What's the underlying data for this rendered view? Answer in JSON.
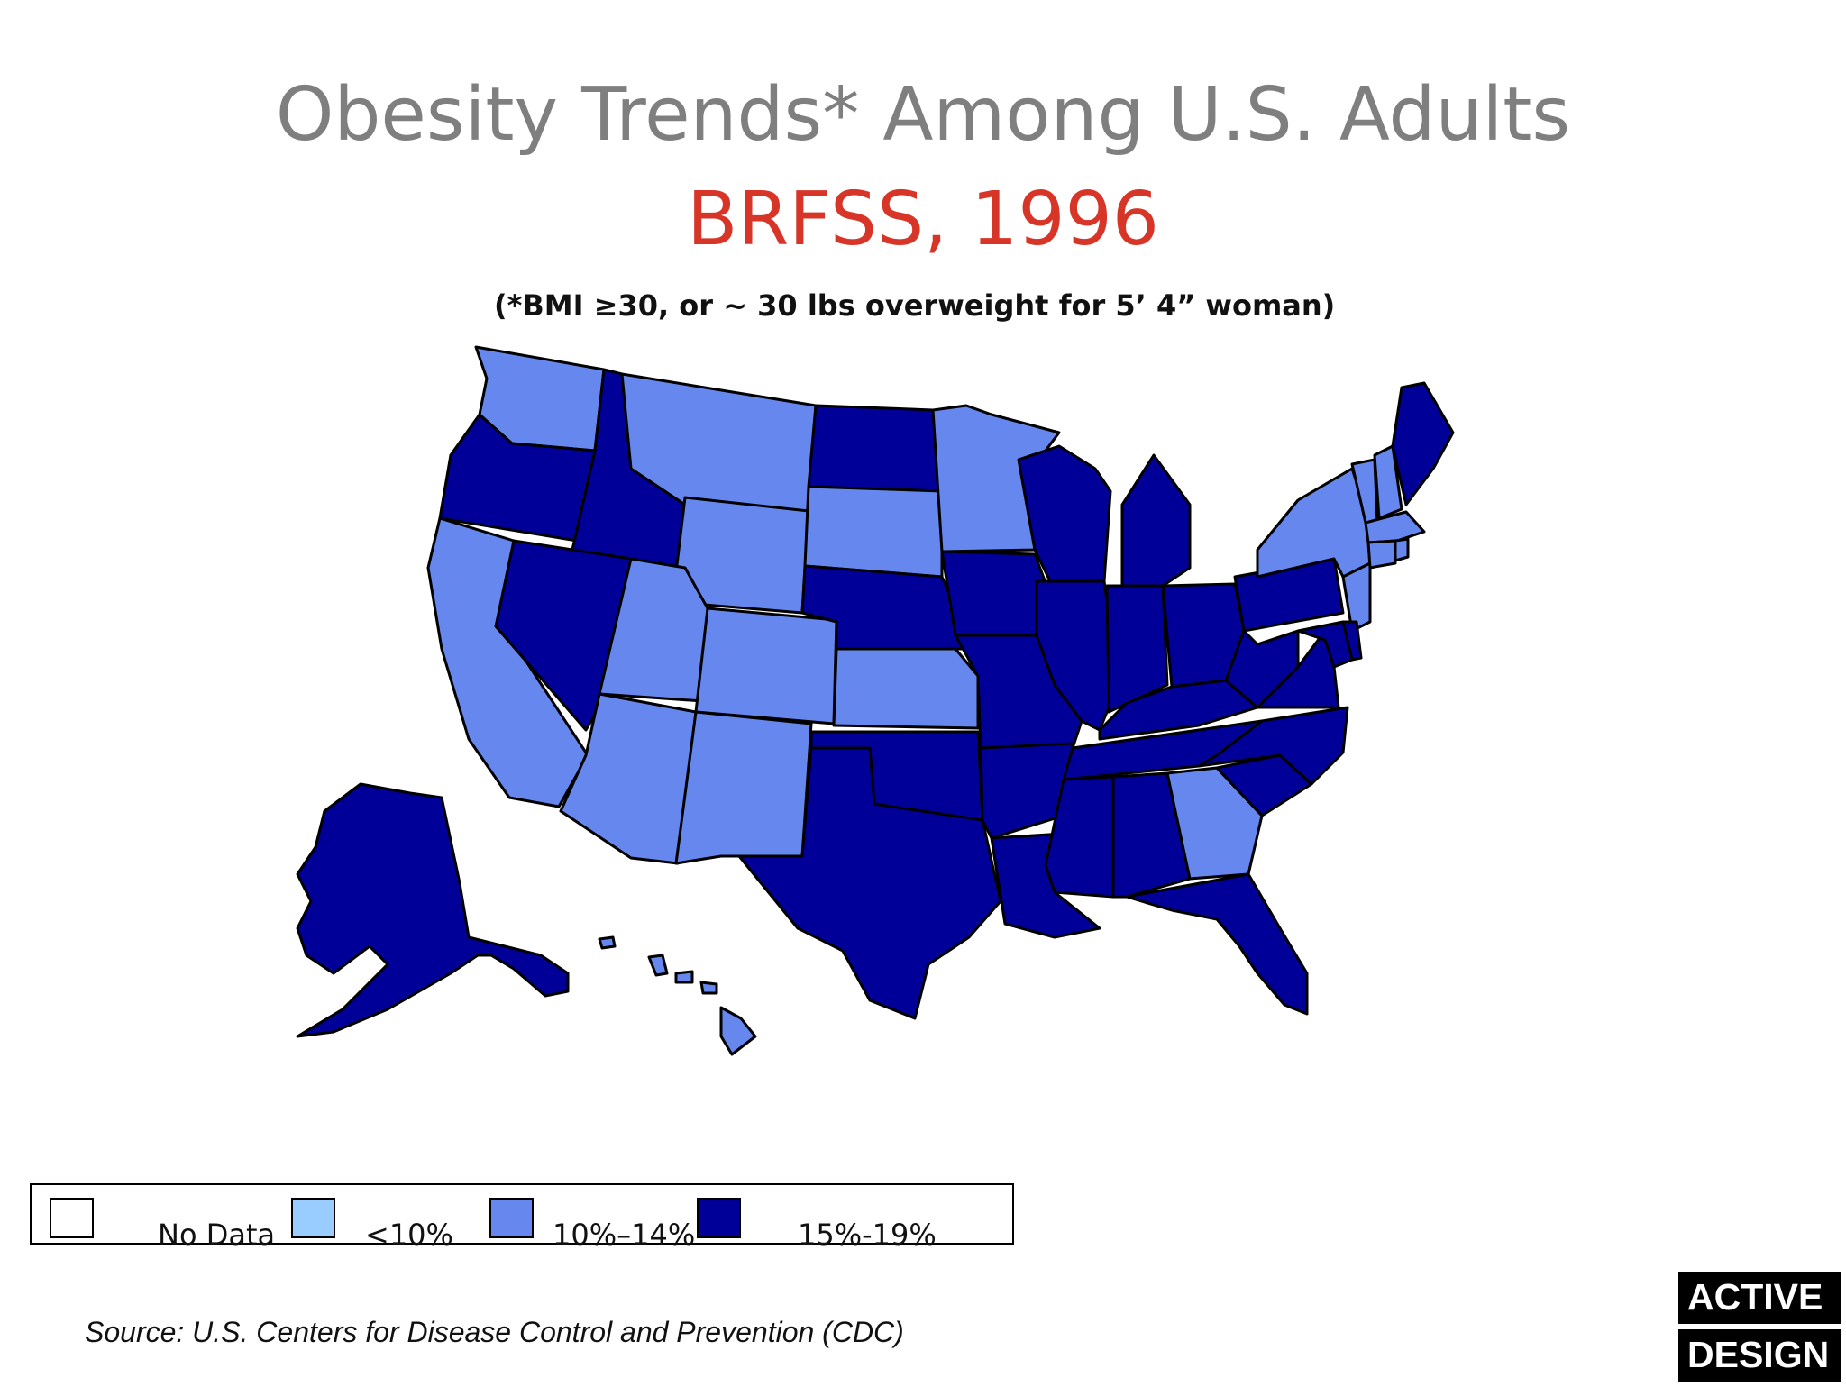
{
  "slide": {
    "title": "Obesity Trends* Among U.S. Adults",
    "subtitle": "BRFSS, 1996",
    "note": "(*BMI ≥30, or ~ 30 lbs overweight for 5’ 4” woman)",
    "source": "Source: U.S. Centers for Disease Control and Prevention (CDC)",
    "logo": [
      "ACTIVE",
      "DESIGN"
    ]
  },
  "legend": [
    {
      "label": "No Data",
      "color": "#ffffff"
    },
    {
      "label": "<10%",
      "color": "#99ccff"
    },
    {
      "label": "10%–14%",
      "color": "#6688ee"
    },
    {
      "label": "15%-19%",
      "color": "#000099"
    }
  ],
  "colors": {
    "title": "#7f7f7f",
    "subtitle": "#d73527",
    "low": "#6688ee",
    "high": "#000099"
  },
  "state_categories": {
    "WA": "10%–14%",
    "OR": "15%-19%",
    "CA": "10%–14%",
    "ID": "15%-19%",
    "NV": "15%-19%",
    "MT": "10%–14%",
    "WY": "10%–14%",
    "UT": "10%–14%",
    "CO": "10%–14%",
    "AZ": "10%–14%",
    "NM": "10%–14%",
    "ND": "15%-19%",
    "SD": "10%–14%",
    "NE": "15%-19%",
    "KS": "10%–14%",
    "OK": "15%-19%",
    "TX": "15%-19%",
    "MN": "10%–14%",
    "IA": "15%-19%",
    "MO": "15%-19%",
    "AR": "15%-19%",
    "LA": "15%-19%",
    "WI": "15%-19%",
    "IL": "15%-19%",
    "MI": "15%-19%",
    "IN": "15%-19%",
    "OH": "15%-19%",
    "KY": "15%-19%",
    "TN": "15%-19%",
    "MS": "15%-19%",
    "AL": "15%-19%",
    "GA": "10%–14%",
    "FL": "15%-19%",
    "SC": "15%-19%",
    "NC": "15%-19%",
    "VA": "15%-19%",
    "WV": "15%-19%",
    "PA": "15%-19%",
    "NY": "10%–14%",
    "NJ": "10%–14%",
    "MD": "15%-19%",
    "DE": "15%-19%",
    "VT": "10%–14%",
    "NH": "10%–14%",
    "ME": "15%-19%",
    "MA": "10%–14%",
    "CT": "10%–14%",
    "RI": "10%–14%",
    "AK": "15%-19%",
    "HI": "10%–14%"
  }
}
